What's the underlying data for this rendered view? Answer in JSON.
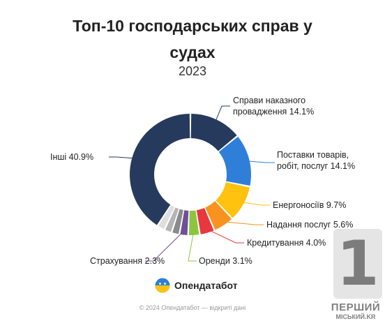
{
  "chart_data": {
    "type": "pie",
    "title_line1": "Топ-10 господарських справ у",
    "title_line2": "судах",
    "subtitle": "2023",
    "slices": [
      {
        "name": "Справи наказного провадження",
        "value": 14.1,
        "color": "#263A5E",
        "labelled": true
      },
      {
        "name": "Поставки товарів, робіт, послуг",
        "value": 14.1,
        "color": "#2F7FD8",
        "labelled": true
      },
      {
        "name": "Енергоносіїв",
        "value": 9.7,
        "color": "#FFC20E",
        "labelled": true
      },
      {
        "name": "Надання послуг",
        "value": 5.6,
        "color": "#F7931E",
        "labelled": true
      },
      {
        "name": "Кредитування",
        "value": 4.0,
        "color": "#E8383D",
        "labelled": true
      },
      {
        "name": "Оренди",
        "value": 3.1,
        "color": "#8CC63F",
        "labelled": true
      },
      {
        "name": "Страхування",
        "value": 2.3,
        "color": "#6F4E9A",
        "labelled": true
      },
      {
        "name": "",
        "value": 2.1,
        "color": "#8A8A8A",
        "labelled": false
      },
      {
        "name": "",
        "value": 2.0,
        "color": "#B5B5B5",
        "labelled": false
      },
      {
        "name": "",
        "value": 2.1,
        "color": "#DEDEDE",
        "labelled": false
      },
      {
        "name": "Інші",
        "value": 40.9,
        "color": "#263A5E",
        "labelled": true
      }
    ]
  },
  "labels": {
    "s0_line1": "Справи наказного",
    "s0_line2": "провадження 14.1%",
    "s1_line1": "Поставки товарів,",
    "s1_line2": "робіт, послуг 14.1%",
    "s2": "Енергоносіїв 9.7%",
    "s3": "Надання послуг 5.6%",
    "s4": "Кредитування 4.0%",
    "s5": "Оренди 3.1%",
    "s6": "Страхування 2.3%",
    "s10": "Інші 40.9%"
  },
  "brand": {
    "name": "Опендатабот"
  },
  "footer": "© 2024 Опендатабот — відкриті дані",
  "watermark": {
    "number": "1",
    "line1": "ПЕРШИЙ",
    "line2": "МІСЬКИЙ.KR"
  }
}
